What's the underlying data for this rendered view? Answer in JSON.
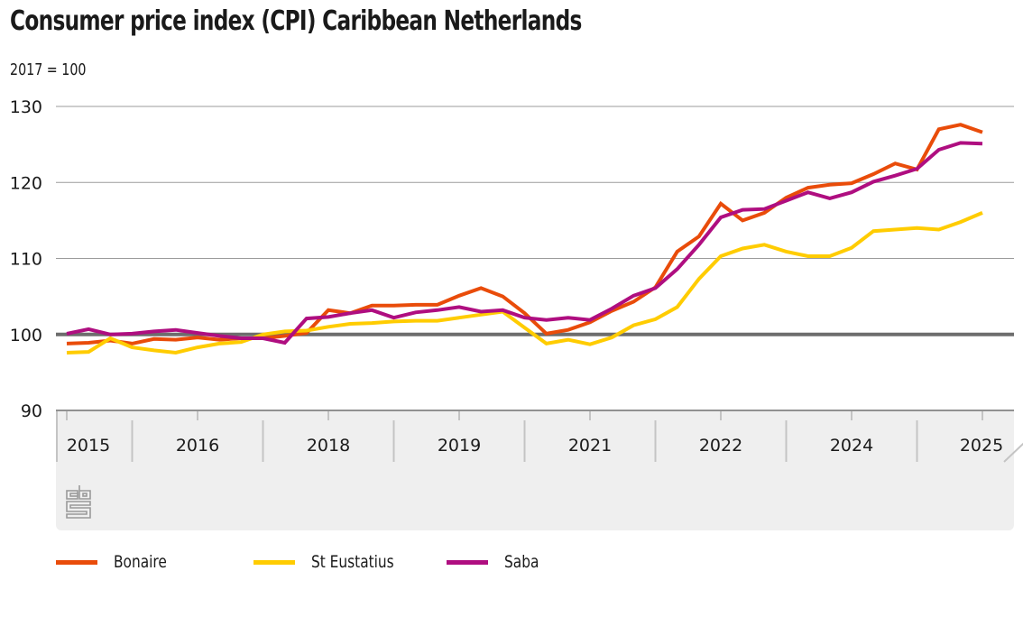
{
  "header": {
    "title": "Consumer price index (CPI) Caribbean Netherlands",
    "subtitle": "2017 = 100"
  },
  "logo_icon": "cbs-logo-icon",
  "chart_data": {
    "type": "line",
    "title": "Consumer price index (CPI) Caribbean Netherlands",
    "subtitle": "2017 = 100",
    "xlabel": "",
    "ylabel": "2017 = 100",
    "ylim": [
      90,
      130
    ],
    "yticks": [
      90,
      100,
      110,
      120,
      130
    ],
    "grid": true,
    "reference_line": 100,
    "x_frequency": "quarterly",
    "x_start": "2015 Q1",
    "x_end": "2025 Q3",
    "x_tick_labels": [
      "2015",
      "2016",
      "2018",
      "2019",
      "2021",
      "2022",
      "2024",
      "2025"
    ],
    "legend_position": "bottom",
    "series": [
      {
        "name": "Bonaire",
        "color": "#e94c0a",
        "values": [
          98.8,
          98.9,
          99.2,
          98.8,
          99.4,
          99.3,
          99.6,
          99.3,
          99.5,
          99.5,
          99.8,
          100.2,
          103.2,
          102.8,
          103.8,
          103.8,
          103.9,
          103.9,
          105.1,
          106.1,
          105.0,
          102.8,
          100.1,
          100.6,
          101.6,
          103.1,
          104.3,
          106.2,
          110.9,
          112.9,
          117.2,
          115.0,
          116.0,
          118.0,
          119.3,
          119.7,
          119.9,
          121.1,
          122.5,
          121.7,
          127.0,
          127.6,
          126.6
        ]
      },
      {
        "name": "St Eustatius",
        "color": "#ffcc00",
        "values": [
          97.6,
          97.7,
          99.5,
          98.3,
          97.9,
          97.6,
          98.3,
          98.8,
          99.0,
          100.0,
          100.4,
          100.5,
          101.0,
          101.4,
          101.5,
          101.7,
          101.8,
          101.8,
          102.2,
          102.6,
          103.0,
          100.9,
          98.8,
          99.3,
          98.7,
          99.6,
          101.2,
          102.0,
          103.6,
          107.3,
          110.3,
          111.3,
          111.8,
          110.9,
          110.3,
          110.3,
          111.4,
          113.6,
          113.8,
          114.0,
          113.8,
          114.8,
          116.0
        ]
      },
      {
        "name": "Saba",
        "color": "#af0e80",
        "values": [
          100.1,
          100.7,
          100.0,
          100.1,
          100.4,
          100.6,
          100.2,
          99.8,
          99.5,
          99.5,
          98.9,
          102.1,
          102.3,
          102.8,
          103.2,
          102.2,
          102.9,
          103.2,
          103.6,
          103.0,
          103.2,
          102.2,
          101.9,
          102.2,
          101.9,
          103.4,
          105.1,
          106.1,
          108.6,
          111.8,
          115.4,
          116.4,
          116.5,
          117.6,
          118.7,
          117.9,
          118.7,
          120.1,
          120.9,
          121.8,
          124.3,
          125.2,
          125.1
        ]
      }
    ]
  }
}
